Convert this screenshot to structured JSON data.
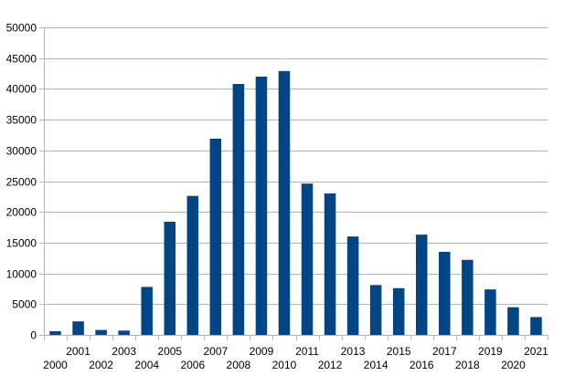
{
  "chart_data": {
    "type": "bar",
    "title": "",
    "xlabel": "",
    "ylabel": "",
    "ylim": [
      0,
      50000
    ],
    "yticks": [
      0,
      5000,
      10000,
      15000,
      20000,
      25000,
      30000,
      35000,
      40000,
      45000,
      50000
    ],
    "grid": true,
    "legend": "none",
    "bar_color": "#004586",
    "categories": [
      "2000",
      "2001",
      "2002",
      "2003",
      "2004",
      "2005",
      "2006",
      "2007",
      "2008",
      "2009",
      "2010",
      "2011",
      "2012",
      "2013",
      "2014",
      "2015",
      "2016",
      "2017",
      "2018",
      "2019",
      "2020",
      "2021"
    ],
    "values": [
      600,
      2200,
      800,
      700,
      7800,
      18400,
      22600,
      31900,
      40800,
      42000,
      42900,
      24600,
      23000,
      16000,
      8100,
      7600,
      16300,
      13500,
      12200,
      7400,
      4500,
      2900
    ]
  }
}
